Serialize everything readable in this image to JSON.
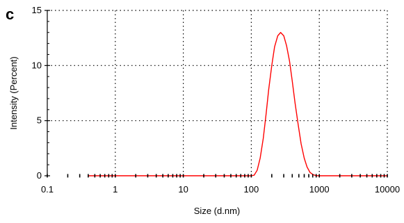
{
  "panel_label": "c",
  "chart_data": {
    "type": "line",
    "title": "",
    "xlabel": "Size (d.nm)",
    "ylabel": "Intensity (Percent)",
    "x_scale": "log",
    "xlim": [
      0.1,
      10000
    ],
    "ylim": [
      0,
      15
    ],
    "x_ticks": [
      0.1,
      1,
      10,
      100,
      1000,
      10000
    ],
    "x_tick_labels": [
      "0.1",
      "1",
      "10",
      "100",
      "1000",
      "10000"
    ],
    "y_ticks": [
      0,
      5,
      10,
      15
    ],
    "y_tick_labels": [
      "0",
      "5",
      "10",
      "15"
    ],
    "grid": true,
    "grid_style": "dotted",
    "legend": "none",
    "series": [
      {
        "color": "#ff0000",
        "x": [
          0.4,
          1,
          10,
          100,
          110,
          122,
          135,
          150,
          165,
          180,
          200,
          220,
          245,
          270,
          300,
          330,
          365,
          400,
          440,
          490,
          540,
          600,
          660,
          730,
          810,
          890,
          980,
          1100,
          10000
        ],
        "y": [
          0,
          0,
          0,
          0,
          0.05,
          0.5,
          1.6,
          3.4,
          5.6,
          7.8,
          10.0,
          11.7,
          12.7,
          13.0,
          12.7,
          11.8,
          10.4,
          8.6,
          6.6,
          4.6,
          2.9,
          1.6,
          0.8,
          0.3,
          0.1,
          0.02,
          0,
          0,
          0
        ]
      }
    ],
    "line_markers": {
      "color": "#000000",
      "x": [
        0.1,
        0.2,
        0.3,
        0.4,
        0.5,
        0.6,
        0.7,
        0.8,
        0.9,
        1,
        2,
        3,
        4,
        5,
        6,
        7,
        8,
        9,
        10,
        20,
        30,
        40,
        50,
        60,
        70,
        80,
        90,
        100,
        200,
        300,
        400,
        500,
        600,
        700,
        800,
        900,
        1000,
        2000,
        3000,
        4000,
        5000,
        6000,
        7000,
        8000,
        9000,
        10000
      ]
    }
  },
  "colors": {
    "series": "#ff0000",
    "axis": "#000000",
    "grid": "#000000"
  }
}
